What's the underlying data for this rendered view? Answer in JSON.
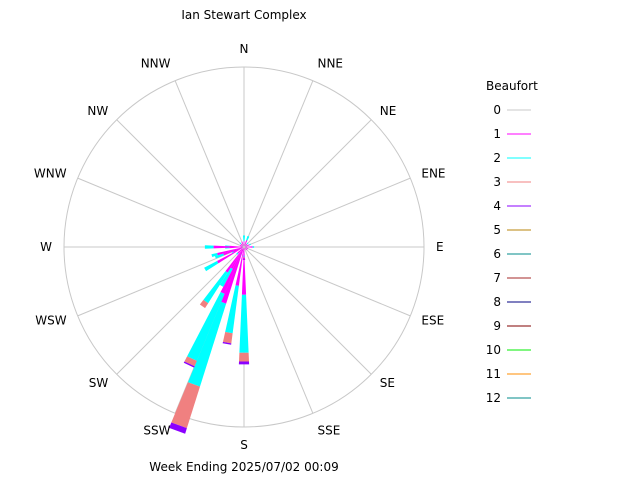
{
  "chart_data": {
    "type": "wind-rose",
    "title": "Ian Stewart Complex",
    "footer": "Week Ending 2025/07/02 00:09",
    "direction_labels": [
      "N",
      "NNE",
      "NE",
      "ENE",
      "E",
      "ESE",
      "SE",
      "SSE",
      "S",
      "SSW",
      "SW",
      "WSW",
      "W",
      "WNW",
      "NW",
      "NNW"
    ],
    "grid": true,
    "legend": {
      "title": "Beaufort",
      "position": "right",
      "entries": [
        {
          "label": "0",
          "color": "#c8c8c8"
        },
        {
          "label": "1",
          "color": "#ff00ff"
        },
        {
          "label": "2",
          "color": "#00ffff"
        },
        {
          "label": "3",
          "color": "#f08080"
        },
        {
          "label": "4",
          "color": "#8b00ff"
        },
        {
          "label": "5",
          "color": "#b8860b"
        },
        {
          "label": "6",
          "color": "#008b8b"
        },
        {
          "label": "7",
          "color": "#a52a2a"
        },
        {
          "label": "8",
          "color": "#000080"
        },
        {
          "label": "9",
          "color": "#800000"
        },
        {
          "label": "10",
          "color": "#00ee00"
        },
        {
          "label": "11",
          "color": "#ff8c00"
        },
        {
          "label": "12",
          "color": "#008b8b"
        }
      ]
    },
    "sectors": [
      {
        "dir": "N",
        "bf": [
          0.5,
          1.5,
          2.0,
          0.0,
          0.0
        ]
      },
      {
        "dir": "NNE",
        "bf": [
          0.5,
          2.0,
          1.5,
          0.0,
          0.0
        ]
      },
      {
        "dir": "NE",
        "bf": [
          0.5,
          1.0,
          0.5,
          0.0,
          0.0
        ]
      },
      {
        "dir": "ENE",
        "bf": [
          0.5,
          1.5,
          0.5,
          0.0,
          0.0
        ]
      },
      {
        "dir": "E",
        "bf": [
          0.5,
          2.5,
          0.5,
          0.0,
          0.0
        ]
      },
      {
        "dir": "ESE",
        "bf": [
          0.5,
          1.0,
          0.0,
          0.0,
          0.0
        ]
      },
      {
        "dir": "SE",
        "bf": [
          0.5,
          1.0,
          0.0,
          0.0,
          0.0
        ]
      },
      {
        "dir": "SSE",
        "bf": [
          0.5,
          0.5,
          0.0,
          0.0,
          0.0
        ]
      },
      {
        "dir": "S",
        "bf": [
          0.5,
          2.5,
          0.5,
          0.5,
          0.5
        ]
      },
      {
        "dir": "SSW",
        "bf": [
          1.0,
          1.5,
          0.5,
          0.0,
          0.0
        ]
      },
      {
        "dir": "SW",
        "bf": [
          1.0,
          2.0,
          0.5,
          0.0,
          0.0
        ]
      },
      {
        "dir": "WSW",
        "bf": [
          0.5,
          3.5,
          0.5,
          0.0,
          0.0
        ]
      },
      {
        "dir": "W",
        "bf": [
          0.5,
          4.5,
          1.5,
          0.0,
          0.0
        ]
      },
      {
        "dir": "WNW",
        "bf": [
          0.5,
          1.0,
          0.0,
          0.0,
          0.0
        ]
      },
      {
        "dir": "NW",
        "bf": [
          0.5,
          1.0,
          0.5,
          0.0,
          0.0
        ]
      },
      {
        "dir": "NNW",
        "bf": [
          0.5,
          1.5,
          0.0,
          0.0,
          0.0
        ]
      }
    ],
    "fine_spokes": [
      {
        "bearing": 180,
        "bf": [
          0.5,
          16.0,
          20.0,
          3.0,
          1.0
        ]
      },
      {
        "bearing": 190,
        "bf": [
          0.5,
          13.0,
          16.5,
          3.5,
          0.5
        ]
      },
      {
        "bearing": 200,
        "bf": [
          0.5,
          20.0,
          30.0,
          15.0,
          2.0
        ]
      },
      {
        "bearing": 205,
        "bf": [
          0.5,
          17.0,
          25.0,
          2.0,
          0.5
        ]
      },
      {
        "bearing": 210,
        "bf": [
          0.5,
          8.0,
          7.0,
          0.0,
          0.0
        ]
      },
      {
        "bearing": 215,
        "bf": [
          0.5,
          10.0,
          12.5,
          2.0,
          0.0
        ]
      },
      {
        "bearing": 240,
        "bf": [
          0.5,
          10.0,
          5.0,
          0.0,
          0.0
        ]
      },
      {
        "bearing": 250,
        "bf": [
          0.5,
          7.0,
          3.0,
          0.0,
          0.0
        ]
      },
      {
        "bearing": 255,
        "bf": [
          0.5,
          9.0,
          2.0,
          0.0,
          0.0
        ]
      },
      {
        "bearing": 270,
        "bf": [
          0.5,
          10.0,
          3.0,
          0.0,
          0.0
        ]
      }
    ]
  }
}
